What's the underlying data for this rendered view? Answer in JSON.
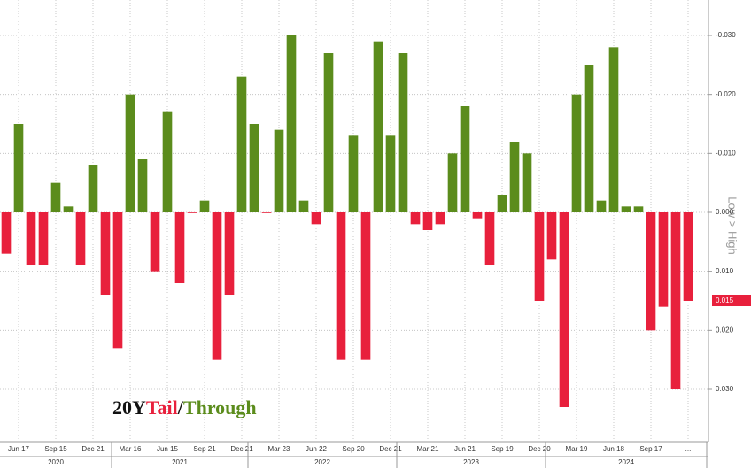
{
  "chart_data": {
    "type": "bar",
    "title_parts": [
      "20Y",
      "Tail",
      "/",
      "Through"
    ],
    "y_axis_label": "Low > High",
    "y_inverted": true,
    "color_positive": "#e8203c",
    "color_negative": "#5b8c1c",
    "grid": true,
    "ylim": [
      -0.036,
      0.039
    ],
    "yticks": [
      {
        "value": -0.03,
        "label": "-0.030"
      },
      {
        "value": -0.02,
        "label": "-0.020"
      },
      {
        "value": -0.01,
        "label": "-0.010"
      },
      {
        "value": 0,
        "label": "0.000"
      },
      {
        "value": 0.01,
        "label": "0.010"
      },
      {
        "value": 0.02,
        "label": "0.020"
      },
      {
        "value": 0.03,
        "label": "0.030"
      }
    ],
    "categories": [
      null,
      "Jun 17",
      null,
      null,
      "Sep 15",
      null,
      null,
      "Dec 21",
      null,
      null,
      "Mar 16",
      null,
      null,
      "Jun 15",
      null,
      null,
      "Sep 21",
      null,
      null,
      "Dec 21",
      null,
      null,
      "Mar 23",
      null,
      null,
      "Jun 22",
      null,
      null,
      "Sep 20",
      null,
      null,
      "Dec 21",
      null,
      null,
      "Mar 21",
      null,
      null,
      "Jun 21",
      null,
      null,
      "Sep 19",
      null,
      null,
      "Dec 20",
      null,
      null,
      "Mar 19",
      null,
      null,
      "Jun 18",
      null,
      null,
      "Sep 17",
      null,
      null,
      "...",
      null
    ],
    "category_years": [
      "2020",
      "2020",
      "2020",
      "2020",
      "2020",
      "2020",
      "2020",
      "2020",
      "2020",
      "2021",
      "2021",
      "2021",
      "2021",
      "2021",
      "2021",
      "2021",
      "2021",
      "2021",
      "2021",
      "2021",
      "2022",
      "2022",
      "2022",
      "2022",
      "2022",
      "2022",
      "2022",
      "2022",
      "2022",
      "2022",
      "2022",
      "2022",
      "2023",
      "2023",
      "2023",
      "2023",
      "2023",
      "2023",
      "2023",
      "2023",
      "2023",
      "2023",
      "2023",
      "2023",
      "2024",
      "2024",
      "2024",
      "2024",
      "2024",
      "2024",
      "2024",
      "2024",
      "2024",
      "2024",
      "2024",
      "2024",
      "2024"
    ],
    "values": [
      0.007,
      -0.015,
      0.009,
      0.009,
      -0.005,
      -0.001,
      0.009,
      -0.008,
      0.014,
      0.023,
      -0.02,
      -0.009,
      0.01,
      -0.017,
      0.012,
      0,
      -0.002,
      0.025,
      0.014,
      -0.023,
      -0.015,
      0,
      -0.014,
      -0.03,
      -0.002,
      0.002,
      -0.027,
      0.025,
      -0.013,
      0.025,
      -0.029,
      -0.013,
      -0.027,
      0.002,
      0.003,
      0.002,
      -0.01,
      -0.018,
      0.001,
      0.009,
      -0.003,
      -0.012,
      -0.01,
      0.015,
      0.008,
      0.033,
      -0.02,
      -0.025,
      -0.002,
      -0.028,
      -0.001,
      -0.001,
      0.02,
      0.016,
      0.03,
      0.015,
      null
    ]
  }
}
